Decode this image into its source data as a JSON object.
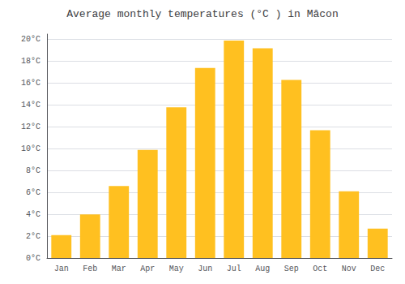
{
  "chart_data": {
    "type": "bar",
    "title": "Average monthly temperatures (°C ) in Mâcon",
    "categories": [
      "Jan",
      "Feb",
      "Mar",
      "Apr",
      "May",
      "Jun",
      "Jul",
      "Aug",
      "Sep",
      "Oct",
      "Nov",
      "Dec"
    ],
    "values": [
      2.1,
      4.0,
      6.6,
      9.9,
      13.8,
      17.4,
      19.9,
      19.2,
      16.3,
      11.7,
      6.1,
      2.7
    ],
    "color": "#FFC020",
    "ylim": [
      0,
      20.5
    ],
    "yticks": [
      {
        "value": 0,
        "label": "0°C"
      },
      {
        "value": 2,
        "label": "2°C"
      },
      {
        "value": 4,
        "label": "4°C"
      },
      {
        "value": 6,
        "label": "6°C"
      },
      {
        "value": 8,
        "label": "8°C"
      },
      {
        "value": 10,
        "label": "10°C"
      },
      {
        "value": 12,
        "label": "12°C"
      },
      {
        "value": 14,
        "label": "14°C"
      },
      {
        "value": 16,
        "label": "16°C"
      },
      {
        "value": 18,
        "label": "18°C"
      },
      {
        "value": 20,
        "label": "20°C"
      }
    ],
    "grid": true
  }
}
